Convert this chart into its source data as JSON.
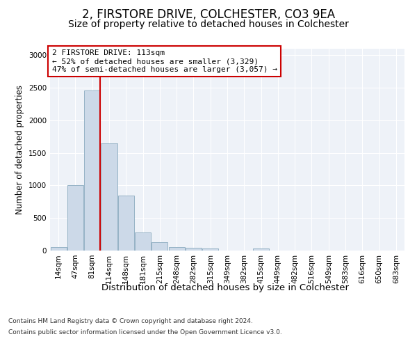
{
  "title": "2, FIRSTORE DRIVE, COLCHESTER, CO3 9EA",
  "subtitle": "Size of property relative to detached houses in Colchester",
  "xlabel": "Distribution of detached houses by size in Colchester",
  "ylabel": "Number of detached properties",
  "categories": [
    "14sqm",
    "47sqm",
    "81sqm",
    "114sqm",
    "148sqm",
    "181sqm",
    "215sqm",
    "248sqm",
    "282sqm",
    "315sqm",
    "349sqm",
    "382sqm",
    "415sqm",
    "449sqm",
    "482sqm",
    "516sqm",
    "549sqm",
    "583sqm",
    "616sqm",
    "650sqm",
    "683sqm"
  ],
  "values": [
    55,
    1000,
    2460,
    1650,
    840,
    275,
    125,
    55,
    40,
    28,
    0,
    0,
    30,
    0,
    0,
    0,
    0,
    0,
    0,
    0,
    0
  ],
  "bar_color": "#ccd9e8",
  "bar_edge_color": "#8aaabf",
  "vline_color": "#cc0000",
  "annotation_text": "2 FIRSTORE DRIVE: 113sqm\n← 52% of detached houses are smaller (3,329)\n47% of semi-detached houses are larger (3,057) →",
  "annotation_box_facecolor": "#ffffff",
  "annotation_box_edgecolor": "#cc0000",
  "ylim": [
    0,
    3100
  ],
  "yticks": [
    0,
    500,
    1000,
    1500,
    2000,
    2500,
    3000
  ],
  "bg_color": "#eef2f8",
  "footer_line1": "Contains HM Land Registry data © Crown copyright and database right 2024.",
  "footer_line2": "Contains public sector information licensed under the Open Government Licence v3.0.",
  "title_fontsize": 12,
  "subtitle_fontsize": 10,
  "xlabel_fontsize": 9.5,
  "ylabel_fontsize": 8.5,
  "tick_fontsize": 7.5,
  "annotation_fontsize": 8,
  "footer_fontsize": 6.5
}
